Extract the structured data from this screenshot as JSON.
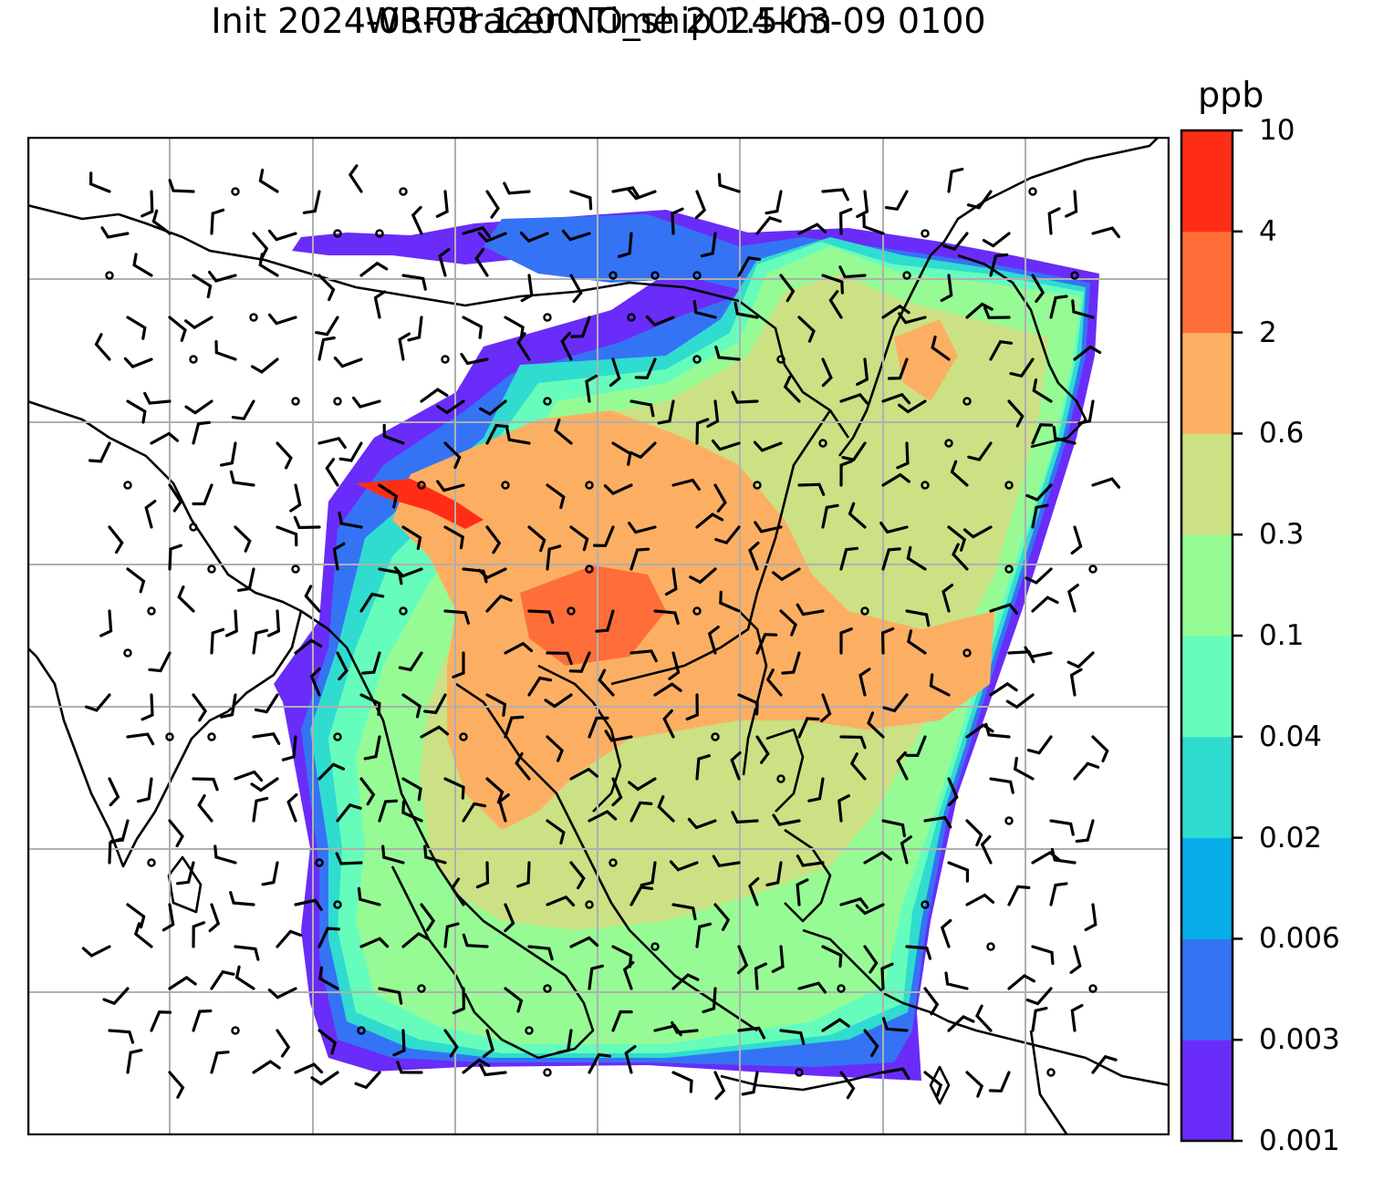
{
  "title_line1": "WRF-Tracer NO_ship 1.5km",
  "title_line2": "Init 2024-03-08 1200 Time 2024-03-09 0100",
  "colorbar": {
    "unit": "ppb",
    "levels": [
      "0.001",
      "0.003",
      "0.006",
      "0.02",
      "0.04",
      "0.1",
      "0.3",
      "0.6",
      "2",
      "4",
      "10"
    ],
    "colors": [
      "#6a2cf8",
      "#3573f5",
      "#08aee9",
      "#30dccf",
      "#66fdbc",
      "#96fb95",
      "#cbe184",
      "#fcaf62",
      "#ff6e38",
      "#ff2d16"
    ]
  },
  "map": {
    "gridlines": true,
    "field_colors": {
      "very_low": "#6a2cf8",
      "low": "#3573f5",
      "cyan": "#30dccf",
      "teal": "#66fdbc",
      "green": "#96fb95",
      "olive": "#cbe184",
      "orange": "#fcaf62",
      "red_orange": "#ff6e38",
      "red": "#ff2d16"
    },
    "wind_barbs": true,
    "coastlines": true
  }
}
